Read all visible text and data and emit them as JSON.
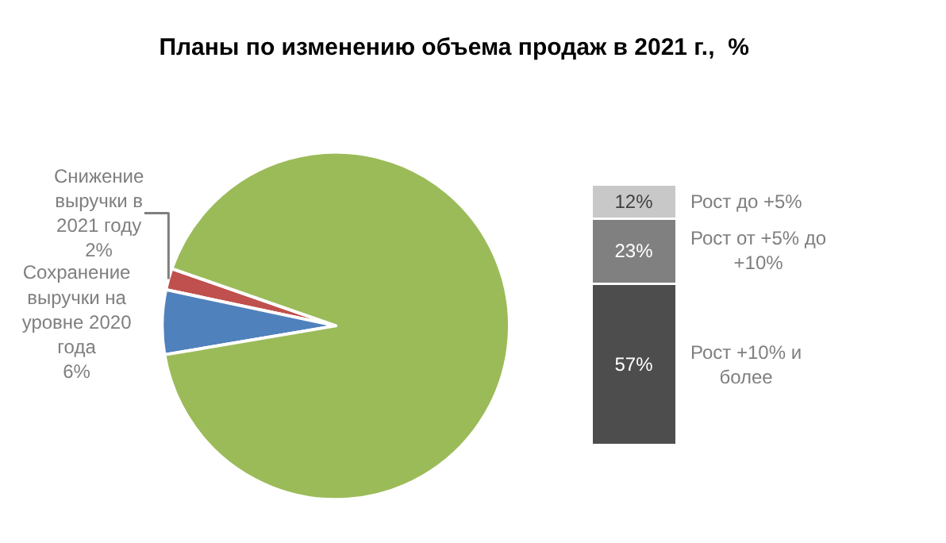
{
  "chart_data": [
    {
      "type": "pie",
      "title": "Планы по изменению объема продаж в 2021 г.,  %",
      "categories": [
        "Снижение выручки в 2021 году",
        "Сохранение выручки на уровне 2020 года",
        null
      ],
      "values": [
        2,
        6,
        92
      ],
      "value_labels": [
        "2%",
        "6%",
        null
      ],
      "colors": [
        "#c0504d",
        "#4f81bd",
        "#9bbb59"
      ]
    },
    {
      "type": "bar",
      "stacked": true,
      "categories": [
        null
      ],
      "tick_labels": false,
      "series": [
        {
          "name": "Рост +10% и более",
          "color": "#4d4d4d",
          "values": [
            57
          ],
          "value_labels": [
            "57%"
          ]
        },
        {
          "name": "Рост от +5% до +10%",
          "color": "#808080",
          "values": [
            23
          ],
          "value_labels": [
            "23%"
          ]
        },
        {
          "name": "Рост до +5%",
          "color": "#c8c8c8",
          "values": [
            12
          ],
          "value_labels": [
            "12%"
          ]
        }
      ]
    }
  ]
}
